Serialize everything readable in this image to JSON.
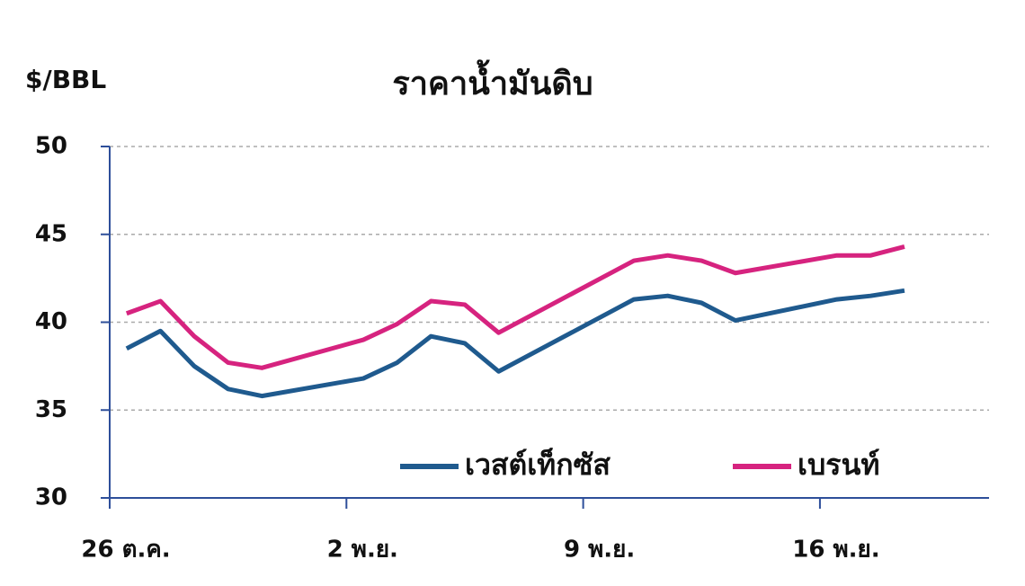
{
  "chart_data": {
    "type": "line",
    "title": "ราคาน้ำมันดิบ",
    "y_label": "$/BBL",
    "x": [
      0.5,
      1.5,
      2.5,
      3.5,
      4.5,
      7.5,
      8.5,
      9.5,
      10.5,
      11.5,
      15.5,
      16.5,
      17.5,
      18.5,
      21.5,
      22.5,
      23.5
    ],
    "series": [
      {
        "name": "เวสต์เท็กซัส",
        "color": "#1f5a8e",
        "values": [
          38.5,
          39.5,
          37.5,
          36.2,
          35.8,
          36.8,
          37.7,
          39.2,
          38.8,
          37.2,
          41.3,
          41.5,
          41.1,
          40.1,
          41.3,
          41.5,
          41.8
        ]
      },
      {
        "name": "เบรนท์",
        "color": "#d6237f",
        "values": [
          40.5,
          41.2,
          39.2,
          37.7,
          37.4,
          39.0,
          39.9,
          41.2,
          41.0,
          39.4,
          43.5,
          43.8,
          43.5,
          42.8,
          43.8,
          43.8,
          44.3
        ]
      }
    ],
    "xlim": [
      0,
      26
    ],
    "xticks": [
      {
        "value": 0,
        "label": "26 ต.ค."
      },
      {
        "value": 7,
        "label": "2 พ.ย."
      },
      {
        "value": 14,
        "label": "9 พ.ย."
      },
      {
        "value": 21,
        "label": "16 พ.ย."
      }
    ],
    "ylim": [
      30,
      50
    ],
    "yticks": [
      30,
      35,
      40,
      45,
      50
    ],
    "grid": true,
    "legend": "bottom-right"
  }
}
